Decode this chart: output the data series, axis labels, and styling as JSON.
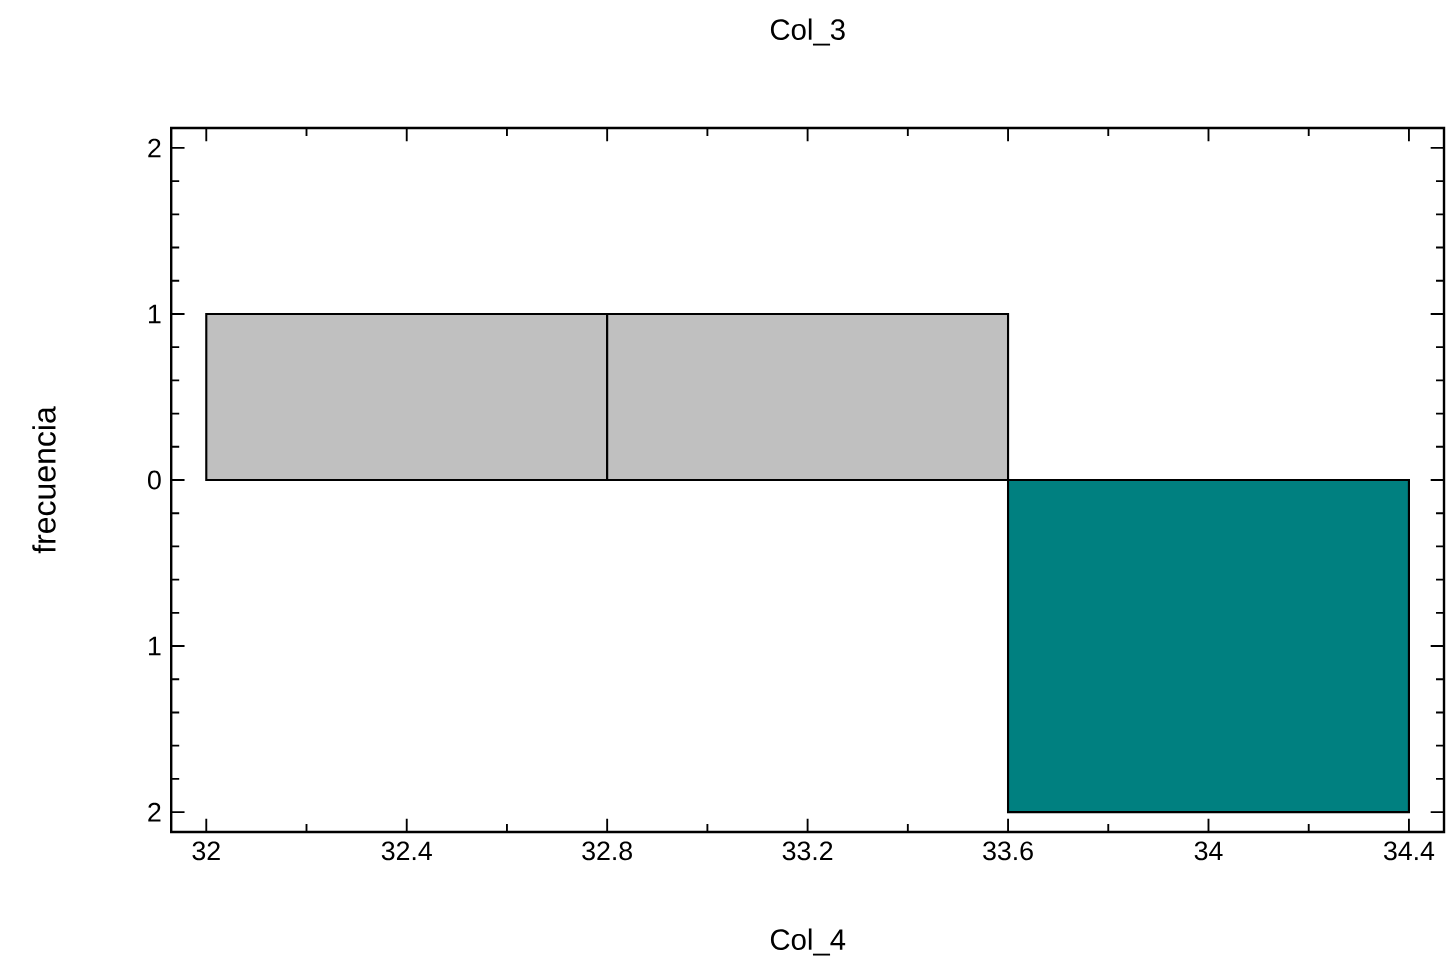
{
  "chart_data": {
    "type": "histogram",
    "title": "Col_3",
    "xlabel": "Col_4",
    "ylabel": "frecuencia",
    "bins": [
      32,
      32.8,
      33.6,
      34.4
    ],
    "series": [
      {
        "color": "#c0c0c0",
        "values": [
          1,
          1,
          null
        ]
      },
      {
        "color": "#008080",
        "values": [
          null,
          null,
          -2
        ]
      }
    ],
    "xlim": [
      31.93,
      34.47
    ],
    "ylim": [
      -2.12,
      2.12
    ],
    "xticks": [
      32,
      32.4,
      32.8,
      33.2,
      33.6,
      34,
      34.4
    ],
    "yticks": [
      {
        "value": -2,
        "label": "2"
      },
      {
        "value": -1,
        "label": "1"
      },
      0,
      1,
      2
    ]
  }
}
